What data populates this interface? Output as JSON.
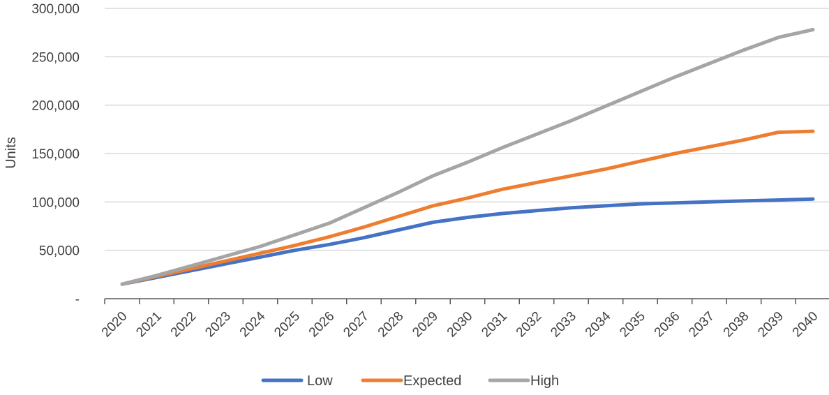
{
  "chart_data": {
    "type": "line",
    "title": "",
    "xlabel": "",
    "ylabel": "Units",
    "x": [
      2020,
      2021,
      2022,
      2023,
      2024,
      2025,
      2026,
      2027,
      2028,
      2029,
      2030,
      2031,
      2032,
      2033,
      2034,
      2035,
      2036,
      2037,
      2038,
      2039,
      2040
    ],
    "ylim": [
      0,
      300000
    ],
    "yticks": [
      0,
      50000,
      100000,
      150000,
      200000,
      250000,
      300000
    ],
    "ytick_labels": [
      "-",
      "50,000",
      "100,000",
      "150,000",
      "200,000",
      "250,000",
      "300,000"
    ],
    "grid": "horizontal",
    "legend": "bottom",
    "series": [
      {
        "name": "Low",
        "color": "#4472C4",
        "values": [
          15000,
          22000,
          29000,
          36000,
          43000,
          50000,
          56000,
          63000,
          71000,
          79000,
          84000,
          88000,
          91000,
          94000,
          96000,
          98000,
          99000,
          100000,
          101000,
          102000,
          103000
        ]
      },
      {
        "name": "Expected",
        "color": "#ED7D31",
        "values": [
          15000,
          23000,
          31000,
          39000,
          47000,
          55000,
          64000,
          74000,
          85000,
          96000,
          104000,
          113000,
          120000,
          127000,
          134000,
          142000,
          150000,
          157000,
          164000,
          172000,
          173000
        ]
      },
      {
        "name": "High",
        "color": "#A5A5A5",
        "values": [
          15000,
          24000,
          34000,
          44000,
          54000,
          66000,
          78000,
          94000,
          110000,
          127000,
          141000,
          156000,
          170000,
          184000,
          199000,
          214000,
          229000,
          243000,
          257000,
          270000,
          278000
        ]
      }
    ]
  }
}
